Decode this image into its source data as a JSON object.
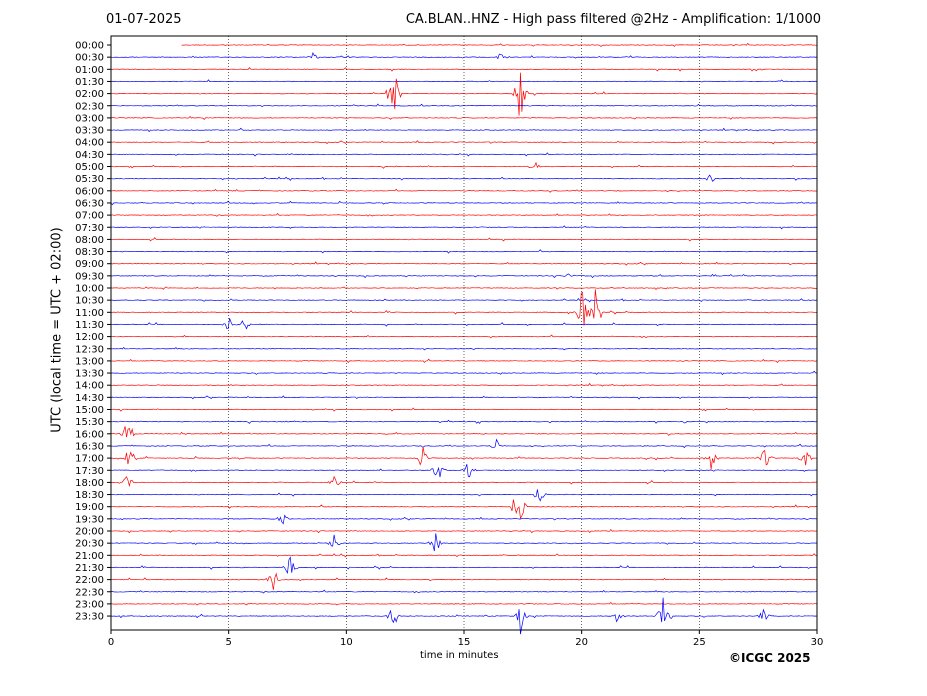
{
  "header": {
    "date": "01-07-2025",
    "title": "CA.BLAN..HNZ - High pass filtered @2Hz - Amplification: 1/1000"
  },
  "footer": {
    "copyright": "©ICGC 2025"
  },
  "chart_data": {
    "type": "line",
    "title": "CA.BLAN..HNZ - High pass filtered @2Hz - Amplification: 1/1000",
    "xlabel": "time in minutes",
    "ylabel": "UTC (local time = UTC + 02:00)",
    "xlim": [
      0,
      30
    ],
    "xticks": [
      0,
      5,
      10,
      15,
      20,
      25,
      30
    ],
    "rows": [
      "00:00",
      "00:30",
      "01:00",
      "01:30",
      "02:00",
      "02:30",
      "03:00",
      "03:30",
      "04:00",
      "04:30",
      "05:00",
      "05:30",
      "06:00",
      "06:30",
      "07:00",
      "07:30",
      "08:00",
      "08:30",
      "09:00",
      "09:30",
      "10:00",
      "10:30",
      "11:00",
      "11:30",
      "12:00",
      "12:30",
      "13:00",
      "13:30",
      "14:00",
      "14:30",
      "15:00",
      "15:30",
      "16:00",
      "16:30",
      "17:00",
      "17:30",
      "18:00",
      "18:30",
      "19:00",
      "19:30",
      "20:00",
      "20:30",
      "21:00",
      "21:30",
      "22:00",
      "22:30",
      "23:00",
      "23:30"
    ],
    "trace_colors": [
      "#ff0000",
      "#0000ff"
    ],
    "grid": "vertical-dotted",
    "last_trace_end_minute": 30,
    "first_trace_start_minute": 3.0,
    "events": [
      {
        "row": "00:30",
        "minute": 8.6,
        "amplitude": 0.4
      },
      {
        "row": "00:30",
        "minute": 16.6,
        "amplitude": 0.6
      },
      {
        "row": "02:00",
        "minute": 12.0,
        "amplitude": 3.2
      },
      {
        "row": "02:00",
        "minute": 17.4,
        "amplitude": 3.4
      },
      {
        "row": "05:00",
        "minute": 18.0,
        "amplitude": 0.5
      },
      {
        "row": "05:30",
        "minute": 25.5,
        "amplitude": 0.5
      },
      {
        "row": "09:30",
        "minute": 19.5,
        "amplitude": 0.4
      },
      {
        "row": "11:00",
        "minute": 20.0,
        "amplitude": 2.5
      },
      {
        "row": "11:00",
        "minute": 20.6,
        "amplitude": 2.6
      },
      {
        "row": "11:30",
        "minute": 5.7,
        "amplitude": 0.8
      },
      {
        "row": "11:30",
        "minute": 5.0,
        "amplitude": 0.7
      },
      {
        "row": "16:00",
        "minute": 0.7,
        "amplitude": 1.5
      },
      {
        "row": "16:30",
        "minute": 16.4,
        "amplitude": 0.7
      },
      {
        "row": "17:00",
        "minute": 0.8,
        "amplitude": 1.3
      },
      {
        "row": "17:00",
        "minute": 13.2,
        "amplitude": 1.5
      },
      {
        "row": "17:00",
        "minute": 25.5,
        "amplitude": 1.2
      },
      {
        "row": "17:00",
        "minute": 27.8,
        "amplitude": 1.1
      },
      {
        "row": "17:00",
        "minute": 29.5,
        "amplitude": 1.0
      },
      {
        "row": "17:30",
        "minute": 13.9,
        "amplitude": 1.2
      },
      {
        "row": "17:30",
        "minute": 15.2,
        "amplitude": 1.0
      },
      {
        "row": "18:00",
        "minute": 9.5,
        "amplitude": 0.8
      },
      {
        "row": "18:00",
        "minute": 0.7,
        "amplitude": 1.0
      },
      {
        "row": "18:30",
        "minute": 18.2,
        "amplitude": 1.0
      },
      {
        "row": "19:00",
        "minute": 17.3,
        "amplitude": 3.0
      },
      {
        "row": "19:30",
        "minute": 7.3,
        "amplitude": 0.8
      },
      {
        "row": "20:30",
        "minute": 13.8,
        "amplitude": 1.0
      },
      {
        "row": "20:30",
        "minute": 9.5,
        "amplitude": 0.8
      },
      {
        "row": "21:30",
        "minute": 7.6,
        "amplitude": 1.0
      },
      {
        "row": "22:00",
        "minute": 6.9,
        "amplitude": 1.2
      },
      {
        "row": "23:30",
        "minute": 12.0,
        "amplitude": 1.5
      },
      {
        "row": "23:30",
        "minute": 17.4,
        "amplitude": 1.8
      },
      {
        "row": "23:30",
        "minute": 21.5,
        "amplitude": 0.6
      },
      {
        "row": "23:30",
        "minute": 23.5,
        "amplitude": 3.0
      },
      {
        "row": "23:30",
        "minute": 27.7,
        "amplitude": 0.7
      }
    ]
  }
}
